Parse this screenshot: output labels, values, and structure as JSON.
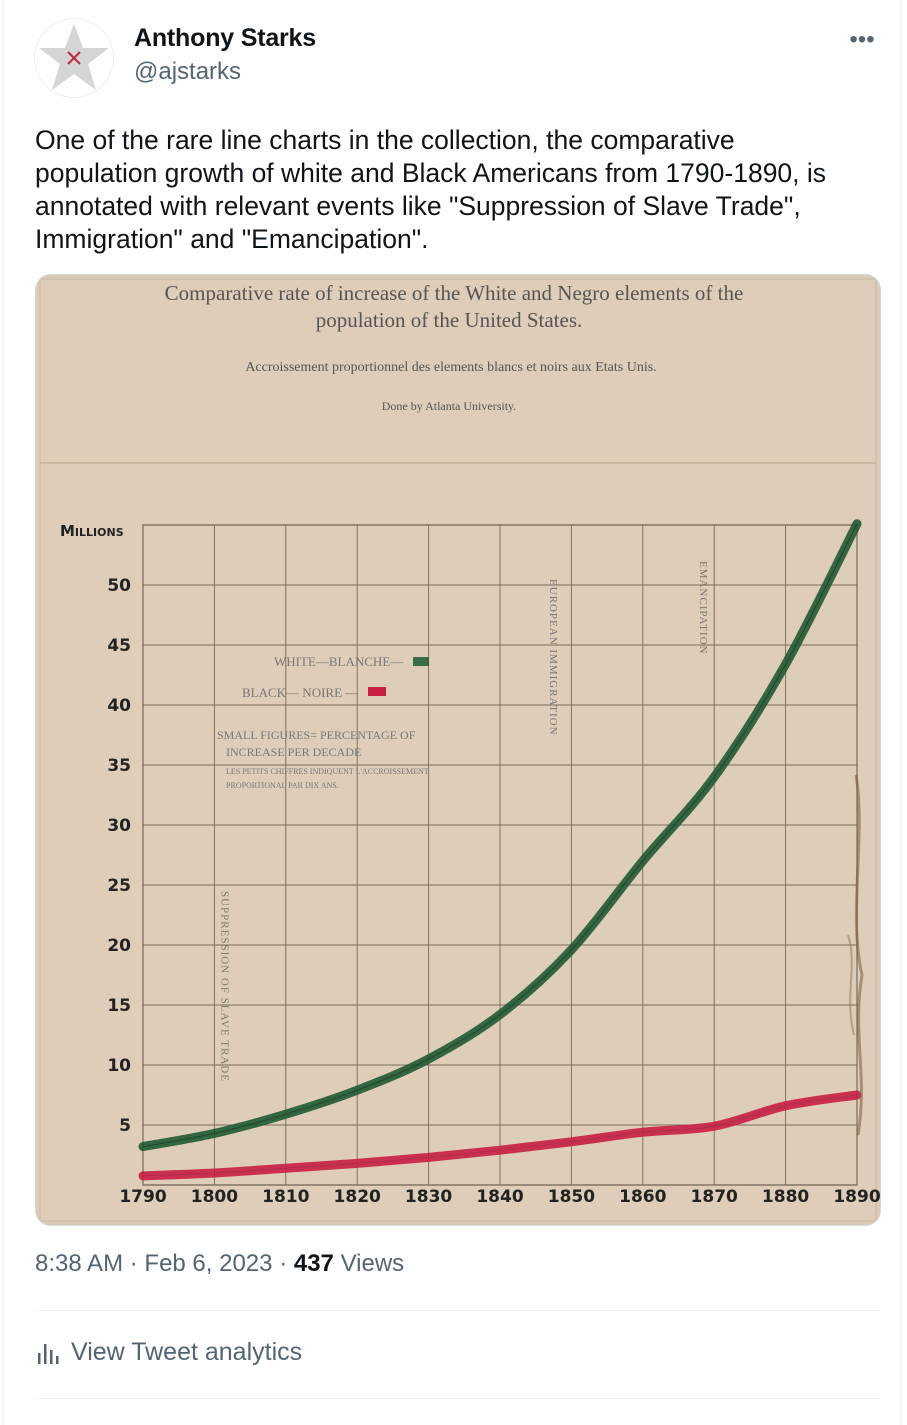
{
  "author": {
    "name": "Anthony Starks",
    "handle": "@ajstarks",
    "avatar_icon": "star-icon"
  },
  "more_label": "•••",
  "tweet_text": "One of the rare line charts in the collection, the comparative population growth of white and Black Americans from 1790-1890, is annotated with relevant events like \"Suppression of Slave Trade\", Immigration\" and  \"Emancipation\".",
  "meta": {
    "time": "8:38 AM",
    "dot1": "·",
    "date": "Feb 6, 2023",
    "dot2": "·",
    "views_count": "437",
    "views_label": "Views"
  },
  "analytics_label": "View Tweet analytics",
  "colors": {
    "white_line": "#1f5a33",
    "black_line": "#c81e45",
    "paper": "#dccbb8"
  },
  "chart_data": {
    "type": "line",
    "title": "Comparative rate of increase of the White and Negro elements of the population of the United States.",
    "title_line1": "Comparative rate of increase of the White and Negro elements of the",
    "title_line2": "population of the United States.",
    "subtitle": "Accroissement proportionnel des elements blancs et noirs aux Etats Unis.",
    "credit": "Done by Atlanta University.",
    "ylabel": "Millions",
    "ylim": [
      0,
      55
    ],
    "yticks": [
      "5",
      "10",
      "15",
      "20",
      "25",
      "30",
      "35",
      "40",
      "45",
      "50"
    ],
    "x": [
      "1790",
      "1800",
      "1810",
      "1820",
      "1830",
      "1840",
      "1850",
      "1860",
      "1870",
      "1880",
      "1890"
    ],
    "series": [
      {
        "name": "WHITE—BLANCHE—",
        "values": [
          3.2,
          4.3,
          5.9,
          7.9,
          10.5,
          14.2,
          19.6,
          27.0,
          34.0,
          43.4,
          55.1
        ]
      },
      {
        "name": "BLACK— NOIRE —",
        "values": [
          0.76,
          1.0,
          1.4,
          1.8,
          2.3,
          2.9,
          3.6,
          4.4,
          4.9,
          6.6,
          7.5
        ]
      }
    ],
    "legend": "center",
    "annotations": [
      "SUPPRESSION OF SLAVE TRADE",
      "EUROPEAN IMMIGRATION",
      "EMANCIPATION"
    ],
    "note_line1": "SMALL FIGURES= PERCENTAGE OF",
    "note_line2": "INCREASE PER DECADE",
    "note_line3": "LES PETITS CHIFFRES INDIQUENT L'ACCROISSEMENT",
    "note_line4": "PROPORTIONAL PAR DIX ANS."
  }
}
